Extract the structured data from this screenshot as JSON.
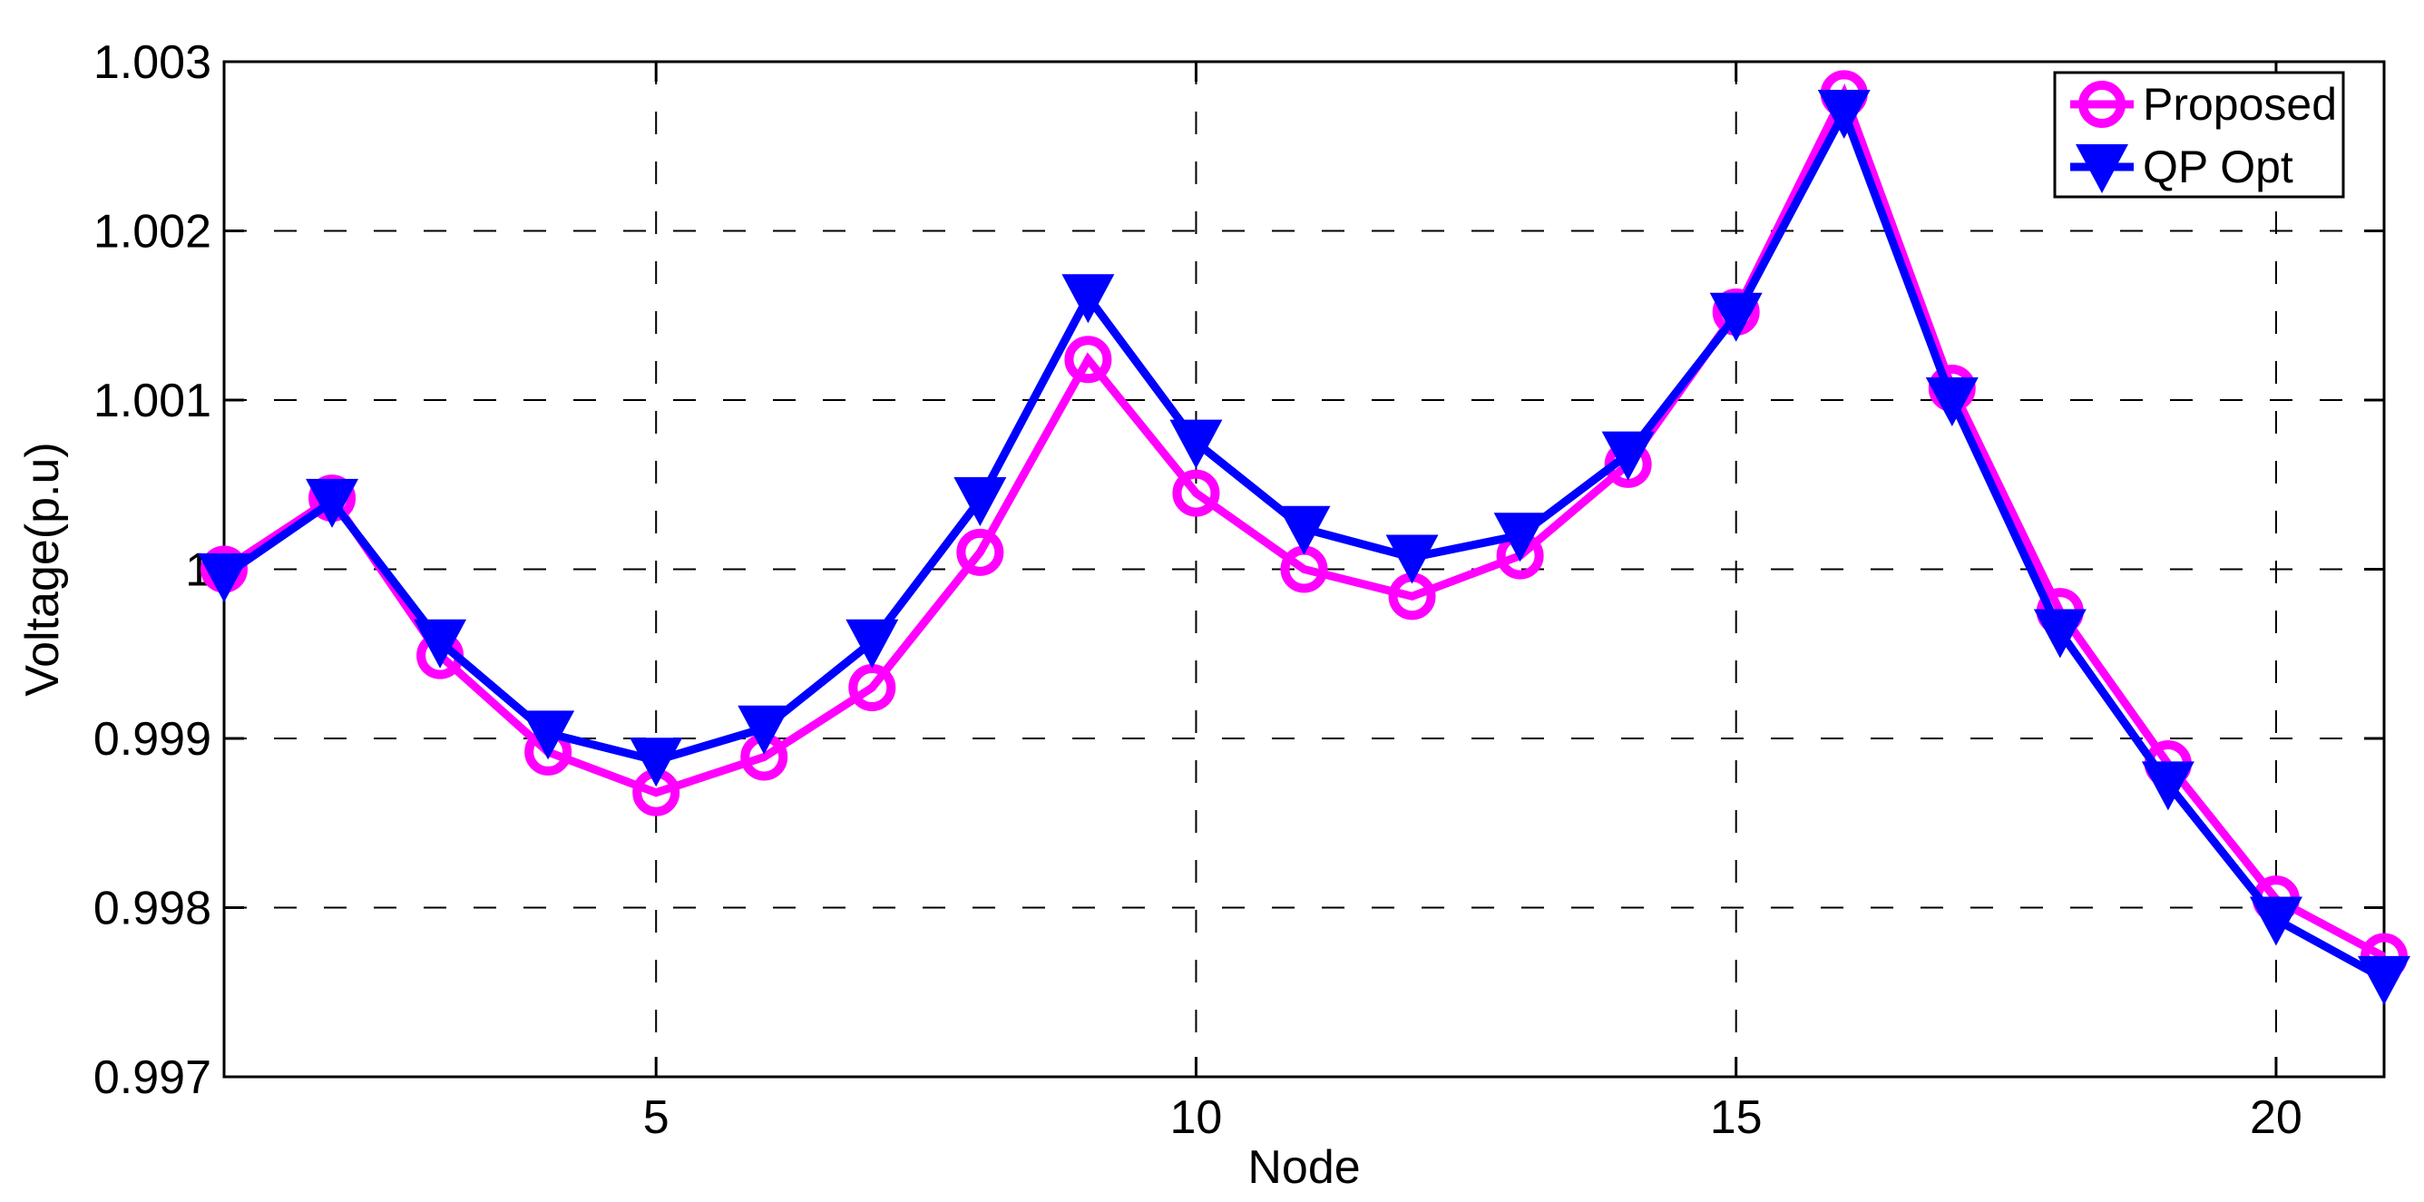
{
  "figure": {
    "background": "#FFFFFF",
    "axis_color": "#000000",
    "grid_color": "#000000"
  },
  "chart_data": {
    "type": "line",
    "title": "",
    "xlabel": "Node",
    "ylabel": "Voltage(p.u)",
    "xlim": [
      1,
      21
    ],
    "ylim": [
      0.997,
      1.003
    ],
    "grid": true,
    "legend_position": "top-right",
    "x": [
      1,
      2,
      3,
      4,
      5,
      6,
      7,
      8,
      9,
      10,
      11,
      12,
      13,
      14,
      15,
      16,
      17,
      18,
      19,
      20,
      21
    ],
    "xticks": {
      "values": [
        5,
        10,
        15,
        20
      ],
      "labels": [
        "5",
        "10",
        "15",
        "20"
      ]
    },
    "yticks": {
      "values": [
        0.997,
        0.998,
        0.999,
        1.0,
        1.001,
        1.002,
        1.003
      ],
      "labels": [
        "0.997",
        "0.998",
        "0.999",
        "1",
        "1.001",
        "1.002",
        "1.003"
      ]
    },
    "series": [
      {
        "name": "Proposed",
        "color": "#FF00FF",
        "marker": "circle",
        "line_width": 9,
        "values": [
          1.0,
          1.00042,
          0.99949,
          0.99892,
          0.99868,
          0.99889,
          0.9993,
          1.0001,
          1.00124,
          1.00045,
          1.0,
          0.99984,
          1.00008,
          1.00062,
          1.00152,
          1.00281,
          1.00107,
          0.99975,
          0.99885,
          0.99805,
          0.99771
        ]
      },
      {
        "name": "QP Opt",
        "color": "#0000FF",
        "marker": "triangle-down",
        "line_width": 9,
        "values": [
          0.99996,
          1.0004,
          0.99957,
          0.99903,
          0.99887,
          0.99906,
          0.99957,
          1.00041,
          1.00161,
          1.00075,
          1.00024,
          1.00007,
          1.0002,
          1.00068,
          1.0015,
          1.0027,
          1.001,
          0.99963,
          0.99873,
          0.99793,
          0.99758
        ]
      }
    ]
  }
}
